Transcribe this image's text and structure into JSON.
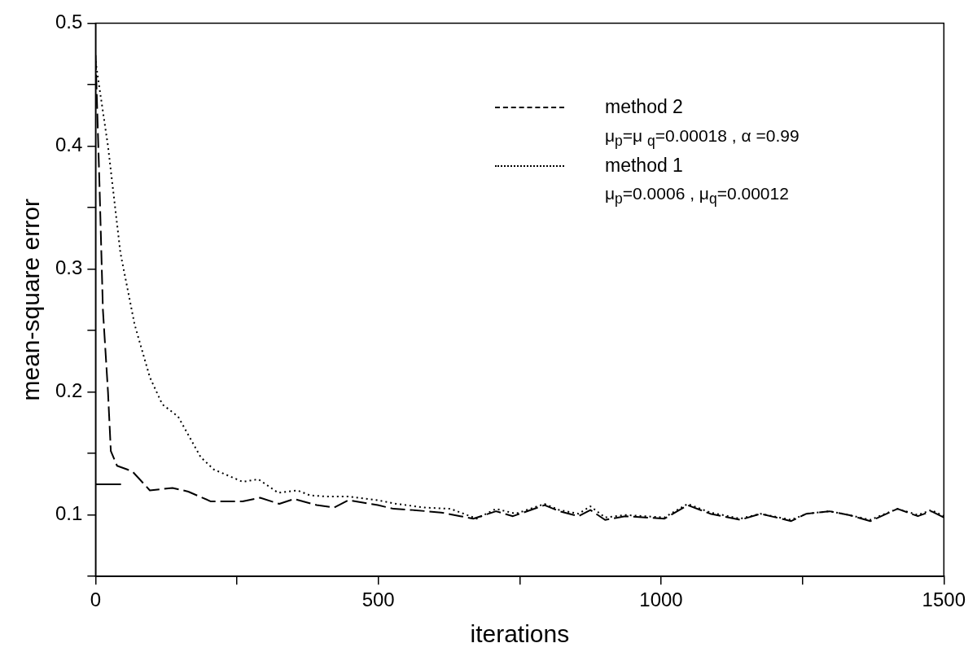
{
  "chart_data": {
    "type": "line",
    "xlabel": "iterations",
    "ylabel": "mean-square error",
    "xlim": [
      0,
      1500
    ],
    "xticks": [
      0,
      {
        "value": 250,
        "label": null
      },
      500,
      {
        "value": 750,
        "label": null
      },
      1000,
      {
        "value": 1250,
        "label": null
      },
      1500
    ],
    "ylim": [
      0.05,
      0.5
    ],
    "yticks": [
      {
        "value": 0.05,
        "label": null
      },
      0.1,
      {
        "value": 0.15,
        "label": null
      },
      0.2,
      {
        "value": 0.25,
        "label": null
      },
      0.3,
      {
        "value": 0.35,
        "label": null
      },
      0.4,
      {
        "value": 0.45,
        "label": null
      },
      0.5
    ],
    "grid": false,
    "legend": "top right",
    "marker": "none",
    "annotations": [
      "μ$_{p}$=μ $_{q}$=0.00018 , α =0.99",
      "μ$_{p}$=0.0006 , μ$_{q}$=0.00012"
    ],
    "series": [
      {
        "type": "line",
        "color": "#000000",
        "line_style": "solid",
        "x": [
          0,
          45
        ],
        "values": [
          0.125,
          0.125
        ]
      },
      {
        "name": "method 2",
        "color": "#000000",
        "line_style": "dashed",
        "x": [
          0,
          7,
          13,
          22,
          27,
          38,
          56,
          66,
          96,
          136,
          164,
          204,
          260,
          291,
          325,
          351,
          391,
          422,
          447,
          499,
          527,
          561,
          611,
          645,
          668,
          708,
          738,
          794,
          820,
          854,
          875,
          901,
          937,
          1006,
          1047,
          1087,
          1140,
          1176,
          1230,
          1257,
          1298,
          1332,
          1370,
          1418,
          1454,
          1478,
          1500
        ],
        "values": [
          0.474,
          0.368,
          0.267,
          0.2,
          0.152,
          0.14,
          0.137,
          0.135,
          0.12,
          0.122,
          0.119,
          0.111,
          0.111,
          0.114,
          0.109,
          0.113,
          0.108,
          0.106,
          0.112,
          0.108,
          0.105,
          0.104,
          0.102,
          0.099,
          0.097,
          0.103,
          0.099,
          0.108,
          0.103,
          0.099,
          0.104,
          0.096,
          0.099,
          0.097,
          0.108,
          0.101,
          0.096,
          0.101,
          0.095,
          0.101,
          0.103,
          0.1,
          0.095,
          0.105,
          0.099,
          0.103,
          0.098
        ]
      },
      {
        "name": "method 1",
        "color": "#000000",
        "line_style": "dotted",
        "x": [
          0,
          22,
          44,
          69,
          96,
          118,
          146,
          186,
          209,
          260,
          288,
          323,
          357,
          379,
          407,
          447,
          499,
          532,
          583,
          628,
          674,
          708,
          743,
          794,
          820,
          854,
          875,
          901,
          937,
          1006,
          1047,
          1087,
          1140,
          1176,
          1230,
          1257,
          1298,
          1332,
          1370,
          1418,
          1454,
          1478,
          1500
        ],
        "values": [
          0.469,
          0.4,
          0.313,
          0.255,
          0.212,
          0.19,
          0.18,
          0.147,
          0.137,
          0.127,
          0.129,
          0.118,
          0.12,
          0.116,
          0.115,
          0.115,
          0.112,
          0.109,
          0.106,
          0.105,
          0.097,
          0.105,
          0.101,
          0.109,
          0.104,
          0.101,
          0.107,
          0.098,
          0.1,
          0.098,
          0.109,
          0.102,
          0.097,
          0.101,
          0.096,
          0.101,
          0.103,
          0.1,
          0.096,
          0.105,
          0.1,
          0.104,
          0.099
        ]
      }
    ]
  }
}
